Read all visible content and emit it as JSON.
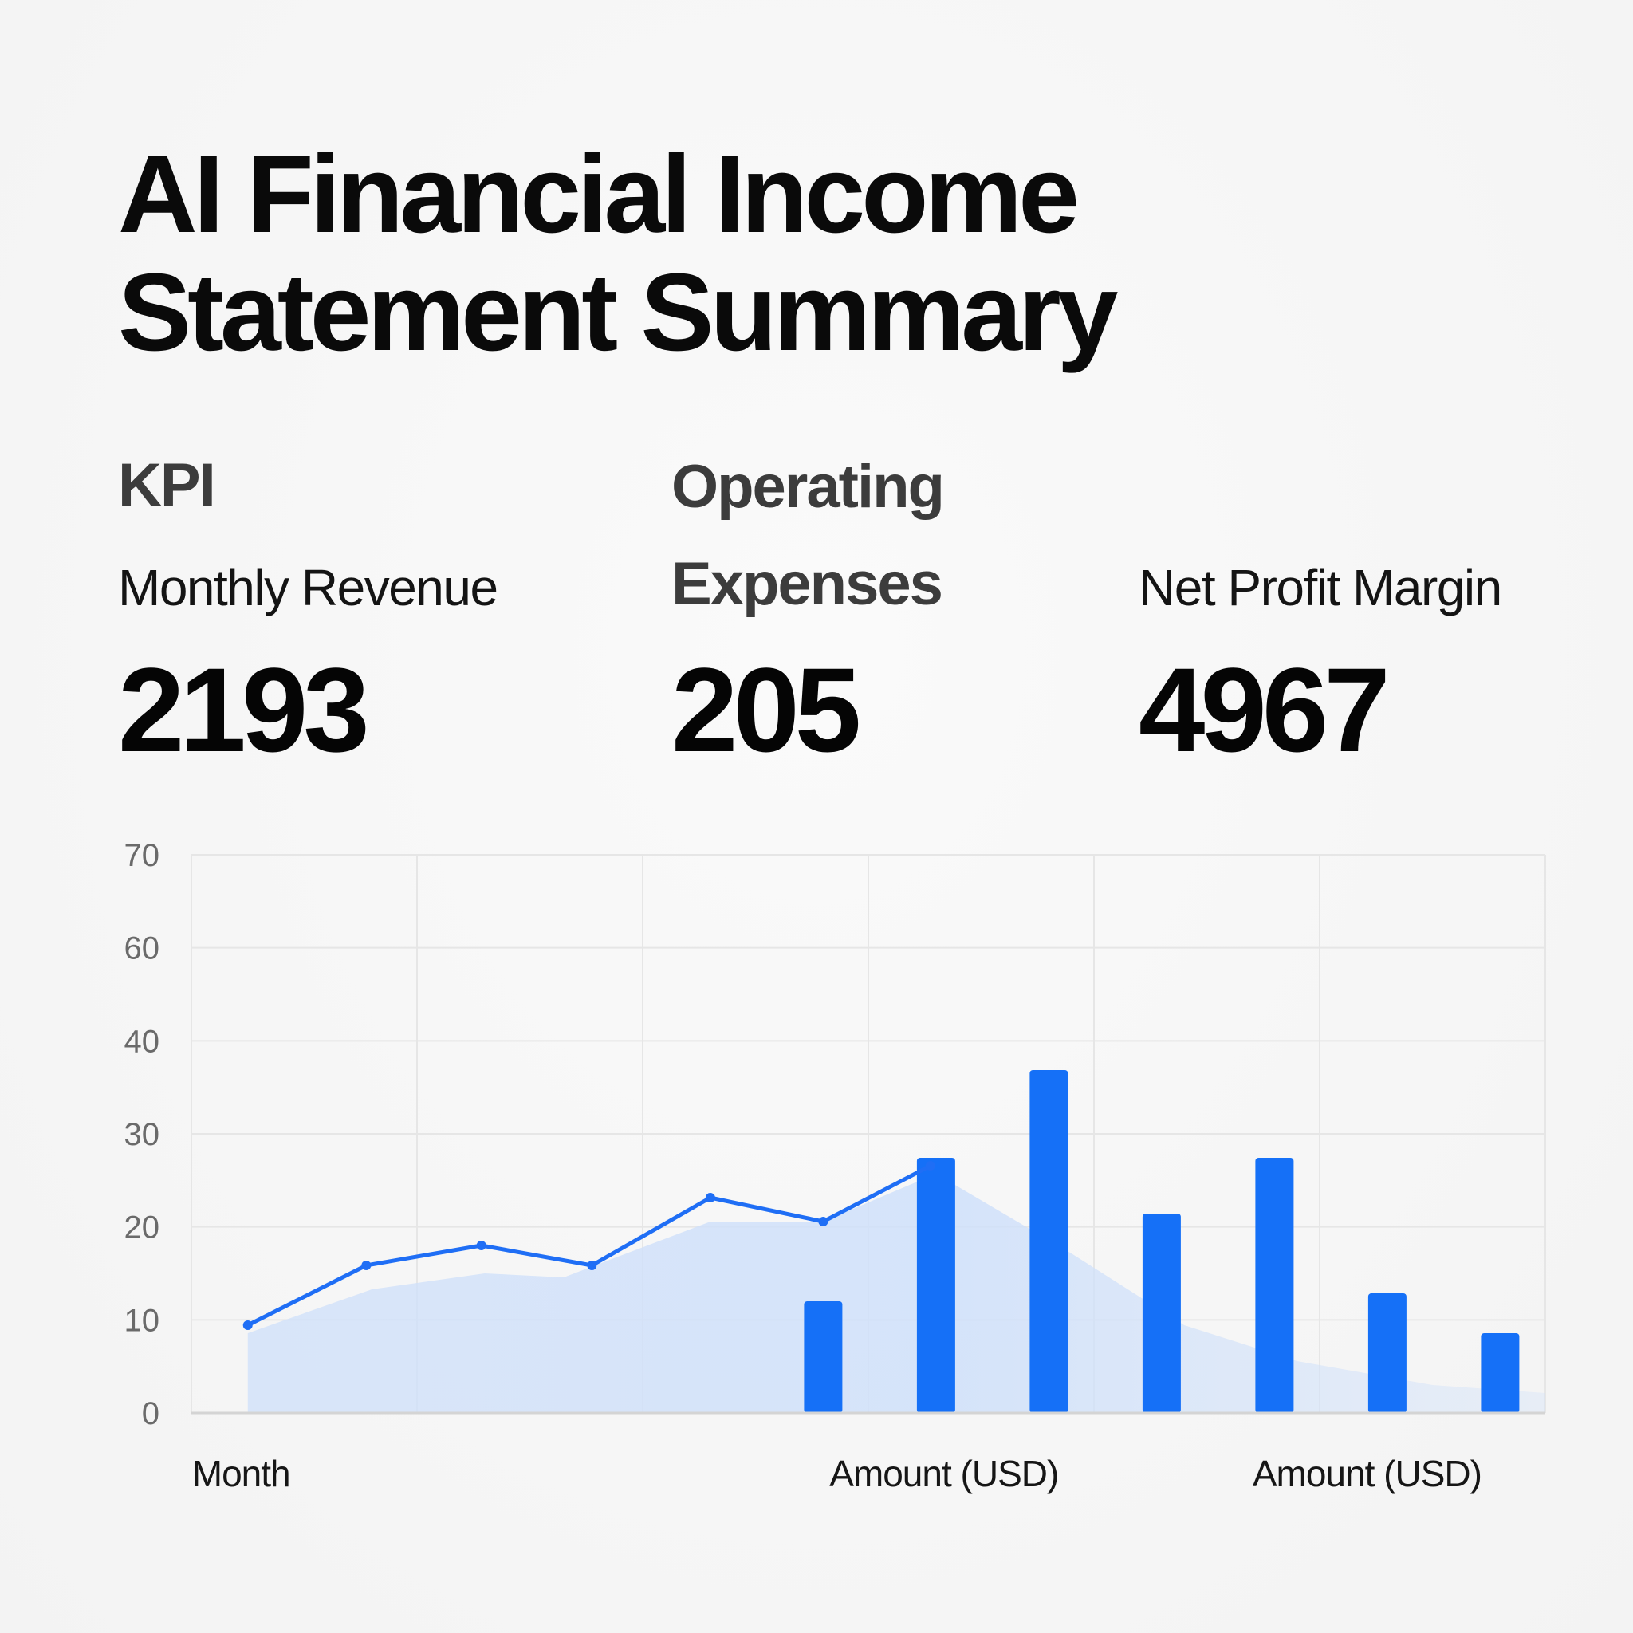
{
  "title": "AI Financial Income Statement Summary",
  "kpis": {
    "header_left": "KPI",
    "header_middle": "Operating Expenses",
    "items": [
      {
        "label": "Monthly Revenue",
        "value": "2193"
      },
      {
        "label": "",
        "value": "205"
      },
      {
        "label": "Net Profit Margin",
        "value": "4967"
      }
    ]
  },
  "colors": {
    "accent": "#1f6ef5",
    "bar": "#1570f7",
    "area": "#cfe0fa",
    "grid": "#e6e6e6"
  },
  "chart_data": {
    "type": "line",
    "y_ticks": [
      "0",
      "10",
      "20",
      "30",
      "40",
      "60",
      "70"
    ],
    "ylim": [
      0,
      70
    ],
    "grid": true,
    "x_labels": [
      {
        "text": "Month",
        "at": 0.5
      },
      {
        "text": "Amount (USD)",
        "at": 6.15
      },
      {
        "text": "Amount (USD)",
        "at": 9.9
      }
    ],
    "line_series": {
      "x": [
        0.5,
        1.55,
        2.57,
        3.55,
        4.6,
        5.6,
        6.55
      ],
      "values": [
        11,
        18.5,
        21,
        18.5,
        27,
        24,
        31
      ]
    },
    "area_series": {
      "x": [
        0.5,
        1.6,
        2.6,
        3.3,
        4.6,
        5.6,
        6.6,
        7.8,
        8.8,
        9.8,
        11,
        12
      ],
      "values": [
        10,
        15.5,
        17.5,
        17,
        24,
        24,
        30,
        20,
        11,
        6.5,
        3.5,
        2.5
      ]
    },
    "bar_series": {
      "x": [
        5.6,
        6.6,
        7.6,
        8.6,
        9.6,
        10.6,
        11.6
      ],
      "values": [
        14,
        32,
        43,
        25,
        32,
        15,
        10
      ]
    }
  }
}
